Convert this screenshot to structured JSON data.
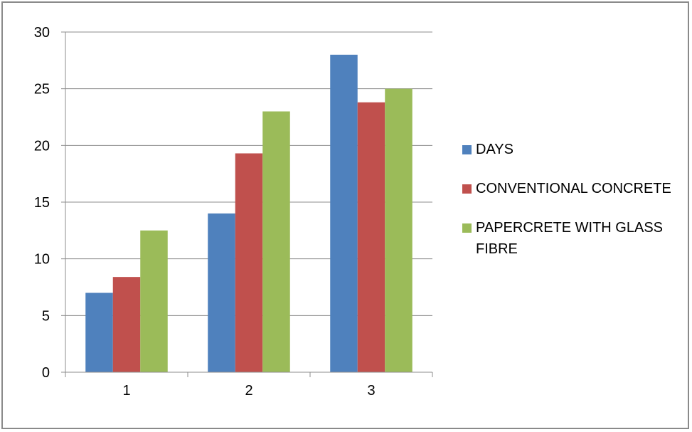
{
  "chart_data": {
    "type": "bar",
    "categories": [
      "1",
      "2",
      "3"
    ],
    "series": [
      {
        "name": "DAYS",
        "values": [
          7,
          14,
          28
        ],
        "color": "#4f81bd"
      },
      {
        "name": "CONVENTIONAL CONCRETE",
        "values": [
          8.4,
          19.3,
          23.8
        ],
        "color": "#c0504d"
      },
      {
        "name": "PAPERCRETE WITH GLASS FIBRE",
        "values": [
          12.5,
          23,
          25
        ],
        "color": "#9bbb59"
      }
    ],
    "ylim": [
      0,
      30
    ],
    "yticks": [
      "0",
      "5",
      "10",
      "15",
      "20",
      "25",
      "30"
    ],
    "grid": true,
    "legend_position": "right"
  }
}
